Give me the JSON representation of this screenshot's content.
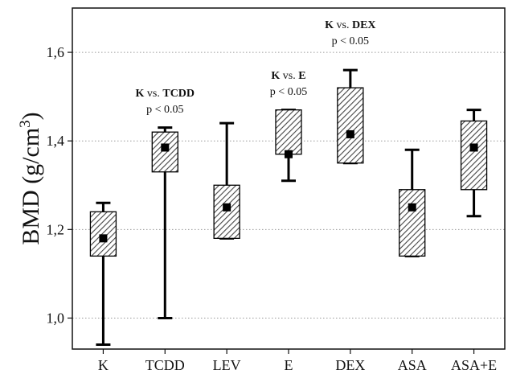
{
  "chart_data": {
    "type": "box",
    "ylabel": "BMD (g/cm3)",
    "ylabel_parts": {
      "pre": "BMD (g/cm",
      "sup": "3",
      "post": ")"
    },
    "ylim": [
      0.93,
      1.7
    ],
    "yticks": [
      1.0,
      1.2,
      1.4,
      1.6
    ],
    "ytick_labels": [
      "1,0",
      "1,2",
      "1,4",
      "1,6"
    ],
    "grid": "horizontal dotted",
    "categories": [
      "K",
      "TCDD",
      "LEV",
      "E",
      "DEX",
      "ASA",
      "ASA+E"
    ],
    "boxes": [
      {
        "category": "K",
        "mean": 1.18,
        "box_low": 1.14,
        "box_high": 1.24,
        "whisker_low": 0.94,
        "whisker_high": 1.26
      },
      {
        "category": "TCDD",
        "mean": 1.385,
        "box_low": 1.33,
        "box_high": 1.42,
        "whisker_low": 1.0,
        "whisker_high": 1.43
      },
      {
        "category": "LEV",
        "mean": 1.25,
        "box_low": 1.18,
        "box_high": 1.3,
        "whisker_low": 1.18,
        "whisker_high": 1.44
      },
      {
        "category": "E",
        "mean": 1.37,
        "box_low": 1.37,
        "box_high": 1.47,
        "whisker_low": 1.31,
        "whisker_high": 1.47
      },
      {
        "category": "DEX",
        "mean": 1.415,
        "box_low": 1.35,
        "box_high": 1.52,
        "whisker_low": 1.35,
        "whisker_high": 1.56
      },
      {
        "category": "ASA",
        "mean": 1.25,
        "box_low": 1.14,
        "box_high": 1.29,
        "whisker_low": 1.14,
        "whisker_high": 1.38
      },
      {
        "category": "ASA+E",
        "mean": 1.385,
        "box_low": 1.29,
        "box_high": 1.445,
        "whisker_low": 1.23,
        "whisker_high": 1.47
      }
    ],
    "annotations": [
      {
        "category": "TCDD",
        "group": "K",
        "vs": "vs.",
        "comparison": "TCDD",
        "p": "p < 0.05",
        "y": 1.5
      },
      {
        "category": "E",
        "group": "K",
        "vs": "vs.",
        "comparison": "E",
        "p": "p < 0.05",
        "y": 1.54
      },
      {
        "category": "DEX",
        "group": "K",
        "vs": "vs.",
        "comparison": "DEX",
        "p": "p < 0.05",
        "y": 1.655
      }
    ]
  }
}
